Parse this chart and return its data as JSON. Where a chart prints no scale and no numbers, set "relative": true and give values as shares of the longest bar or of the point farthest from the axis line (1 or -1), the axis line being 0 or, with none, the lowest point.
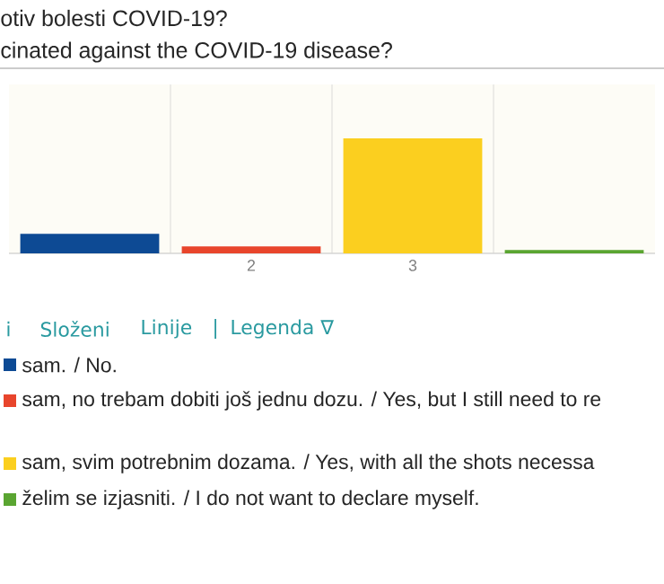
{
  "chart_data": {
    "type": "bar",
    "title": "otiv bolesti COVID-19?",
    "subtitle": "cinated against the COVID-19 disease?",
    "categories": [
      null,
      "2",
      "3",
      null
    ],
    "relative": true,
    "grid": true,
    "legend": "bottom",
    "series": [
      {
        "name": "sam. / No.",
        "color": "#0d4a94",
        "values": [
          0.17,
          null,
          null,
          null
        ]
      },
      {
        "name": "sam, no trebam dobiti još jednu dozu. / Yes, but I still need to re",
        "color": "#e8452c",
        "values": [
          null,
          0.06,
          null,
          null
        ]
      },
      {
        "name": "sam, svim potrebnim dozama. / Yes, with all the shots necessa",
        "color": "#fbcf1f",
        "values": [
          null,
          null,
          1,
          null
        ]
      },
      {
        "name": "želim se izjasniti. / I do not want to declare myself.",
        "color": "#5aa531",
        "values": [
          null,
          null,
          null,
          0.03
        ]
      }
    ],
    "annotations": [
      "i",
      "Složeni",
      "Linije",
      "|",
      "Legenda ∇"
    ]
  }
}
